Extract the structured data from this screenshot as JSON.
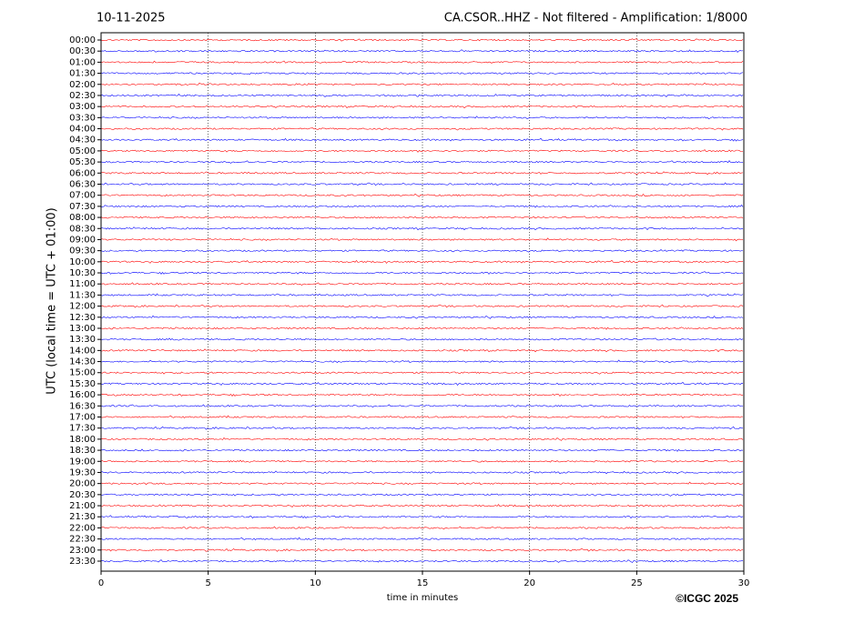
{
  "chart_data": {
    "type": "helicorder",
    "date": "10-11-2025",
    "title": "CA.CSOR..HHZ - Not filtered - Amplification: 1/8000",
    "xlabel": "time in minutes",
    "ylabel": "UTC (local time = UTC + 01:00)",
    "copyright": "©ICGC 2025",
    "categories": [
      "00:00",
      "00:30",
      "01:00",
      "01:30",
      "02:00",
      "02:30",
      "03:00",
      "03:30",
      "04:00",
      "04:30",
      "05:00",
      "05:30",
      "06:00",
      "06:30",
      "07:00",
      "07:30",
      "08:00",
      "08:30",
      "09:00",
      "09:30",
      "10:00",
      "10:30",
      "11:00",
      "11:30",
      "12:00",
      "12:30",
      "13:00",
      "13:30",
      "14:00",
      "14:30",
      "15:00",
      "15:30",
      "16:00",
      "16:30",
      "17:00",
      "17:30",
      "18:00",
      "18:30",
      "19:00",
      "19:30",
      "20:00",
      "20:30",
      "21:00",
      "21:30",
      "22:00",
      "22:30",
      "23:00",
      "23:30"
    ],
    "colors": [
      "#ff0000",
      "#0000ff"
    ],
    "xlim": [
      0,
      30
    ],
    "xticks": [
      0,
      5,
      10,
      15,
      20,
      25,
      30
    ],
    "grid": true
  }
}
